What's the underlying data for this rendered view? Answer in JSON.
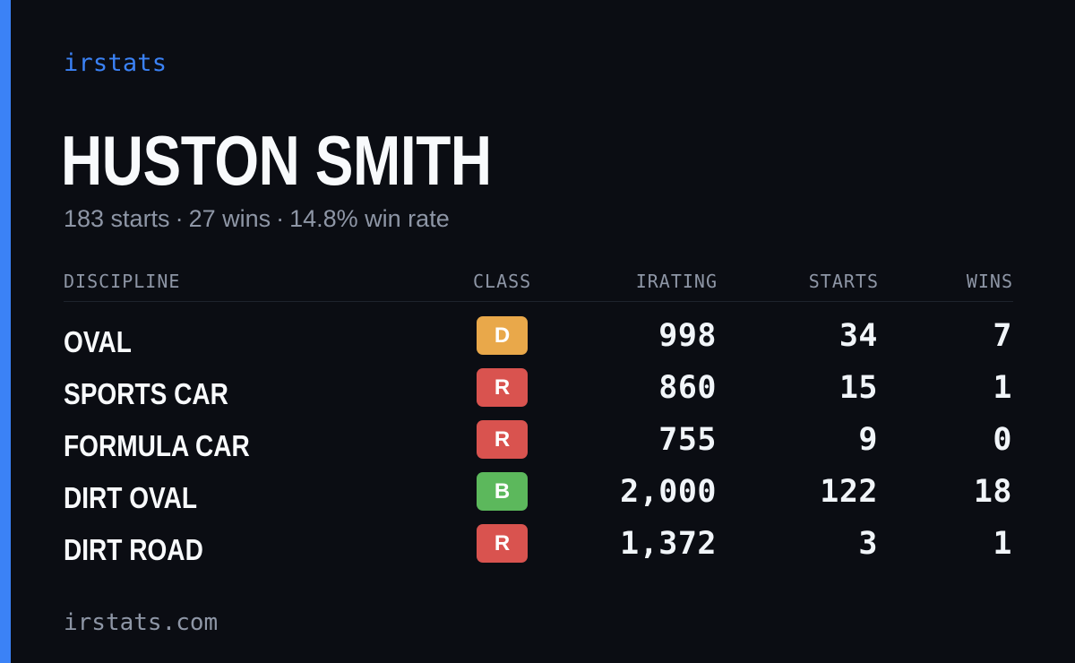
{
  "brand": "irstats",
  "player": {
    "name": "HUSTON SMITH"
  },
  "summary": {
    "starts": "183 starts",
    "wins": "27 wins",
    "win_rate": "14.8% win rate",
    "separator": "·"
  },
  "table": {
    "headers": {
      "discipline": "DISCIPLINE",
      "class": "CLASS",
      "irating": "IRATING",
      "starts": "STARTS",
      "wins": "WINS"
    },
    "rows": [
      {
        "discipline": "OVAL",
        "class": "D",
        "class_color": "#e9a84a",
        "irating": "998",
        "starts": "34",
        "wins": "7"
      },
      {
        "discipline": "SPORTS CAR",
        "class": "R",
        "class_color": "#d9534f",
        "irating": "860",
        "starts": "15",
        "wins": "1"
      },
      {
        "discipline": "FORMULA CAR",
        "class": "R",
        "class_color": "#d9534f",
        "irating": "755",
        "starts": "9",
        "wins": "0"
      },
      {
        "discipline": "DIRT OVAL",
        "class": "B",
        "class_color": "#5cb85c",
        "irating": "2,000",
        "starts": "122",
        "wins": "18"
      },
      {
        "discipline": "DIRT ROAD",
        "class": "R",
        "class_color": "#d9534f",
        "irating": "1,372",
        "starts": "3",
        "wins": "1"
      }
    ]
  },
  "footer": {
    "site": "irstats.com"
  },
  "colors": {
    "accent": "#3b82f6",
    "background": "#0b0d13",
    "muted_text": "#8e96a6"
  }
}
